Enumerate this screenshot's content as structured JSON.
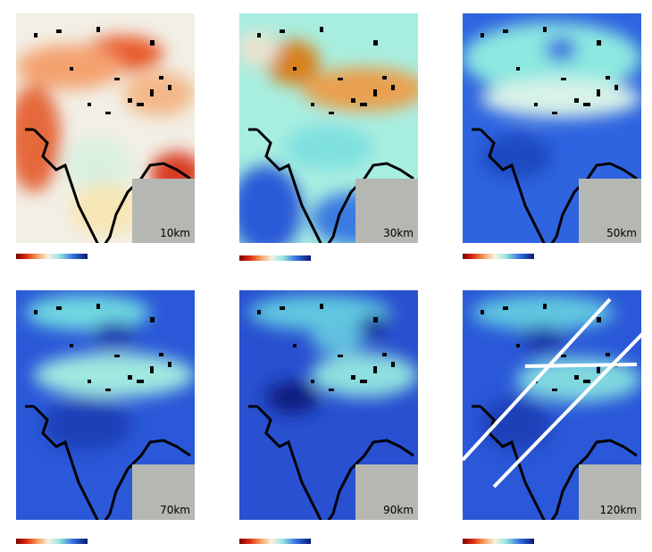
{
  "panels": [
    {
      "label": "10km"
    },
    {
      "label": "30km"
    },
    {
      "label": "50km"
    },
    {
      "label": "70km"
    },
    {
      "label": "90km"
    },
    {
      "label": "120km"
    }
  ]
}
